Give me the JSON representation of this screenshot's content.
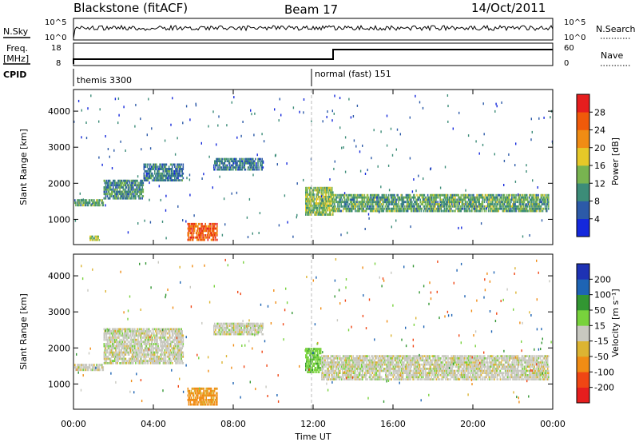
{
  "header": {
    "station": "Blackstone (fitACF)",
    "beam": "Beam 17",
    "date": "14/Oct/2011"
  },
  "top_panels": {
    "nsky_label": "N.Sky",
    "nsearch_label": "N.Search",
    "noise_left_ticks": [
      "10^5",
      "10^0"
    ],
    "noise_right_ticks": [
      "10^5",
      "10^0"
    ],
    "freq_label_line1": "Freq.",
    "freq_label_line2": "[MHz]",
    "freq_ticks": [
      "18",
      "8"
    ],
    "nave_label": "Nave",
    "nave_ticks": [
      "60",
      "0"
    ],
    "cpid_label": "CPID",
    "cpid_segments": [
      {
        "label": "themis 3300",
        "start_hour": 0
      },
      {
        "label": "normal (fast) 151",
        "start_hour": 12
      }
    ]
  },
  "axes": {
    "ylabel": "Slant Range [km]",
    "xlabel": "Time UT",
    "y_ticks": [
      "1000",
      "2000",
      "3000",
      "4000"
    ],
    "x_ticks": [
      "00:00",
      "04:00",
      "08:00",
      "12:00",
      "16:00",
      "20:00",
      "00:00"
    ]
  },
  "colorbars": {
    "power": {
      "label": "Power [dB]",
      "ticks": [
        "4",
        "8",
        "12",
        "16",
        "20",
        "24",
        "28"
      ],
      "colors": [
        "#1428dc",
        "#2c5aa8",
        "#3c8c78",
        "#78b450",
        "#e6c828",
        "#f08c14",
        "#f05a0a",
        "#e61e1e"
      ]
    },
    "velocity": {
      "label": "Velocity [m s⁻¹]",
      "ticks": [
        "200",
        "100",
        "50",
        "15",
        "-15",
        "-50",
        "-100",
        "-200"
      ],
      "colors": [
        "#1e32b4",
        "#1e64b4",
        "#329632",
        "#78d23c",
        "#c8c8c0",
        "#dcb432",
        "#f08c14",
        "#f04614",
        "#e61e1e"
      ]
    }
  },
  "chart_data": [
    {
      "type": "heatmap",
      "name": "Power",
      "x_range_hours": [
        0,
        24
      ],
      "ylim_km": [
        300,
        4600
      ],
      "colorbar_range_db": [
        0,
        32
      ],
      "bands": [
        {
          "t0": 0.0,
          "t1": 1.5,
          "r0": 1360,
          "r1": 1560,
          "db": 12
        },
        {
          "t0": 1.5,
          "t1": 3.5,
          "r0": 1550,
          "r1": 2100,
          "db": 10
        },
        {
          "t0": 3.5,
          "t1": 5.5,
          "r0": 2050,
          "r1": 2550,
          "db": 8
        },
        {
          "t0": 7.0,
          "t1": 9.5,
          "r0": 2350,
          "r1": 2700,
          "db": 8
        },
        {
          "t0": 0.8,
          "t1": 1.3,
          "r0": 400,
          "r1": 550,
          "db": 16
        },
        {
          "t0": 5.7,
          "t1": 7.2,
          "r0": 400,
          "r1": 900,
          "db": 26
        },
        {
          "t0": 11.6,
          "t1": 13.0,
          "r0": 1100,
          "r1": 1900,
          "db": 14
        },
        {
          "t0": 13.0,
          "t1": 23.8,
          "r0": 1200,
          "r1": 1700,
          "db": 12
        }
      ]
    },
    {
      "type": "heatmap",
      "name": "Velocity",
      "x_range_hours": [
        0,
        24
      ],
      "ylim_km": [
        300,
        4600
      ],
      "colorbar_range_ms": [
        -200,
        200
      ],
      "bands": [
        {
          "t0": 0.0,
          "t1": 1.5,
          "r0": 1360,
          "r1": 1560,
          "v": 0
        },
        {
          "t0": 1.5,
          "t1": 5.5,
          "r0": 1550,
          "r1": 2550,
          "v": 0
        },
        {
          "t0": 7.0,
          "t1": 9.5,
          "r0": 2350,
          "r1": 2700,
          "v": 0
        },
        {
          "t0": 5.7,
          "t1": 7.2,
          "r0": 400,
          "r1": 900,
          "v": -60
        },
        {
          "t0": 11.6,
          "t1": 12.4,
          "r0": 1300,
          "r1": 2000,
          "v": 40
        },
        {
          "t0": 12.4,
          "t1": 23.8,
          "r0": 1100,
          "r1": 1800,
          "v": 0
        }
      ]
    }
  ]
}
